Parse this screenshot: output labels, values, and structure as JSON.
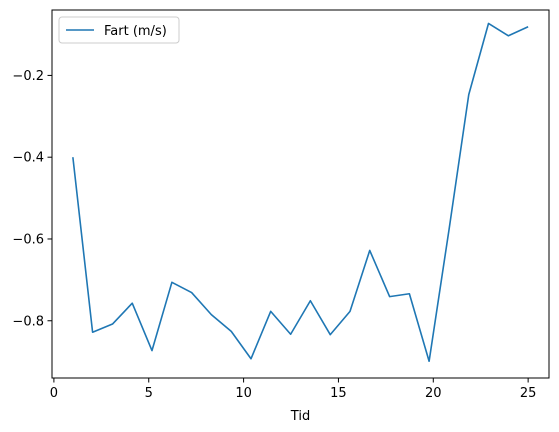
{
  "chart_data": {
    "type": "line",
    "xlabel": "Tid",
    "ylabel": "",
    "xlim": [
      -0.1,
      26.1
    ],
    "ylim": [
      -0.94,
      -0.04
    ],
    "xticks": [
      0,
      5,
      10,
      15,
      20,
      25
    ],
    "yticks": [
      -0.8,
      -0.6,
      -0.4,
      -0.2
    ],
    "grid": false,
    "legend_position": "top-left",
    "series": [
      {
        "name": "Fart (m/s)",
        "color": "#1f77b4",
        "x": [
          1.0,
          2.04,
          3.09,
          4.13,
          5.17,
          6.22,
          7.26,
          8.3,
          9.35,
          10.39,
          11.43,
          12.48,
          13.52,
          14.57,
          15.61,
          16.65,
          17.7,
          18.74,
          19.78,
          20.83,
          21.87,
          22.91,
          23.96,
          25.0
        ],
        "values": [
          -0.4,
          -0.828,
          -0.808,
          -0.757,
          -0.873,
          -0.706,
          -0.731,
          -0.785,
          -0.826,
          -0.893,
          -0.777,
          -0.833,
          -0.751,
          -0.834,
          -0.777,
          -0.628,
          -0.741,
          -0.734,
          -0.899,
          -0.577,
          -0.247,
          -0.073,
          -0.103,
          -0.081
        ]
      }
    ]
  }
}
